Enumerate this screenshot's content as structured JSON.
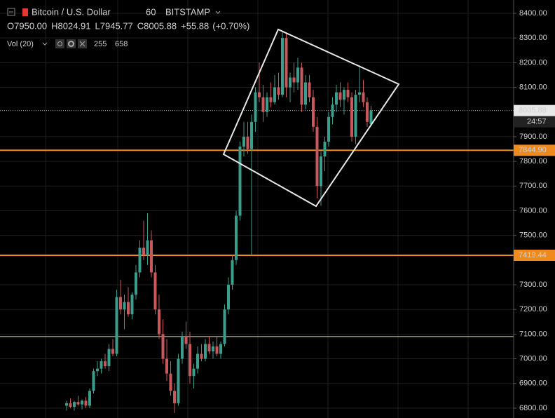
{
  "chart_data": {
    "type": "candlestick",
    "symbol": "Bitcoin / U.S. Dollar",
    "interval": 60,
    "exchange": "BITSTAMP",
    "ohlc": [
      {
        "label": "O",
        "value": "7950.00"
      },
      {
        "label": "H",
        "value": "8024.91"
      },
      {
        "label": "L",
        "value": "7945.77"
      },
      {
        "label": "C",
        "value": "8005.88"
      }
    ],
    "change": "+55.88",
    "change_pct": "(+0.70%)",
    "volume_label": "Vol (20)",
    "volume_values": [
      255,
      658
    ],
    "up_color": "#3a9e8c",
    "down_color": "#c9585c",
    "open": [
      6810,
      6820,
      6805,
      6825,
      6815,
      6830,
      6810,
      6870,
      6950,
      6960,
      6990,
      6970,
      7040,
      7020,
      7250,
      7200,
      7230,
      7180,
      7260,
      7350,
      7450,
      7420,
      7480,
      7350,
      7200,
      7100,
      7000,
      6940,
      6870,
      6820,
      7000,
      7090,
      7060,
      6930,
      6960,
      7020,
      7000,
      7060,
      7030,
      7050,
      7020,
      7060,
      7200,
      7300,
      7400,
      7580,
      7860,
      7900,
      7850,
      7960,
      8080,
      8060,
      8000,
      8060,
      8040,
      8100,
      8070,
      8300,
      8100,
      8140,
      8120,
      8180,
      8030,
      8120,
      8060,
      7940,
      7700,
      7820,
      7880,
      7980,
      8030,
      8080,
      8050,
      8090,
      8060,
      7900,
      8070,
      8080,
      8040,
      7950
    ],
    "high": [
      6830,
      6840,
      6830,
      6850,
      6835,
      6845,
      6880,
      6960,
      6990,
      7000,
      7020,
      7060,
      7080,
      7280,
      7320,
      7260,
      7290,
      7270,
      7380,
      7480,
      7560,
      7590,
      7520,
      7380,
      7260,
      7160,
      7080,
      6990,
      6900,
      7020,
      7110,
      7150,
      7110,
      6980,
      7050,
      7060,
      7080,
      7090,
      7070,
      7090,
      7070,
      7220,
      7330,
      7420,
      7600,
      7880,
      7960,
      7960,
      7990,
      8100,
      8200,
      8110,
      8080,
      8120,
      8150,
      8160,
      8330,
      8320,
      8160,
      8200,
      8220,
      8200,
      8150,
      8150,
      8090,
      7980,
      7840,
      7900,
      8000,
      8060,
      8110,
      8120,
      8100,
      8120,
      8080,
      8090,
      8190,
      8130,
      8060,
      8024.91
    ],
    "low": [
      6790,
      6800,
      6790,
      6810,
      6795,
      6800,
      6800,
      6860,
      6930,
      6940,
      6960,
      6950,
      7010,
      7010,
      7180,
      7120,
      7170,
      7160,
      7240,
      7330,
      7400,
      7380,
      7330,
      7180,
      7080,
      6980,
      6910,
      6850,
      6780,
      6810,
      6980,
      7040,
      6900,
      6880,
      6940,
      6990,
      6990,
      7020,
      7000,
      7010,
      7000,
      7050,
      7180,
      7280,
      7380,
      7560,
      7820,
      7830,
      7420,
      7920,
      8040,
      7960,
      7980,
      8020,
      8030,
      8050,
      8060,
      8060,
      8040,
      8080,
      8090,
      8000,
      8010,
      8040,
      7920,
      7650,
      7620,
      7760,
      7860,
      7950,
      8000,
      8020,
      7990,
      8040,
      7880,
      7870,
      8040,
      8020,
      7940,
      7945.77
    ],
    "close": [
      6820,
      6805,
      6825,
      6815,
      6830,
      6810,
      6870,
      6950,
      6960,
      6990,
      6970,
      7040,
      7020,
      7250,
      7200,
      7230,
      7180,
      7260,
      7350,
      7450,
      7420,
      7480,
      7350,
      7200,
      7100,
      7000,
      6940,
      6870,
      6820,
      7000,
      7090,
      7060,
      6930,
      6960,
      7020,
      7000,
      7060,
      7030,
      7050,
      7020,
      7060,
      7200,
      7300,
      7400,
      7580,
      7860,
      7900,
      7850,
      7960,
      8080,
      8060,
      8000,
      8060,
      8040,
      8100,
      8070,
      8300,
      8100,
      8140,
      8120,
      8180,
      8030,
      8120,
      8060,
      7940,
      7700,
      7820,
      7880,
      7980,
      8030,
      8080,
      8050,
      8090,
      8060,
      7900,
      8070,
      8080,
      8040,
      7960,
      8005.88
    ],
    "ylim": [
      6760,
      8454
    ],
    "yticks": [
      {
        "value": 8400,
        "label": "8400.00"
      },
      {
        "value": 8300,
        "label": "8300.00"
      },
      {
        "value": 8200,
        "label": "8200.00"
      },
      {
        "value": 8100,
        "label": "8100.00"
      },
      {
        "value": 7900,
        "label": "7900.00"
      },
      {
        "value": 7800,
        "label": "7800.00"
      },
      {
        "value": 7700,
        "label": "7700.00"
      },
      {
        "value": 7600,
        "label": "7600.00"
      },
      {
        "value": 7500,
        "label": "7500.00"
      },
      {
        "value": 7300,
        "label": "7300.00"
      },
      {
        "value": 7200,
        "label": "7200.00"
      },
      {
        "value": 7100,
        "label": "7100.00"
      },
      {
        "value": 7000,
        "label": "7000.00"
      },
      {
        "value": 6900,
        "label": "6900.00"
      },
      {
        "value": 6800,
        "label": "6800.00"
      }
    ],
    "grid": true,
    "last_price": {
      "value": 8005.88,
      "label": "8005.88",
      "countdown": "24:57"
    },
    "hlines": [
      {
        "value": 7844.9,
        "label": "7844.90",
        "color": "#f08a1c"
      },
      {
        "value": 7419.44,
        "label": "7419.44",
        "color": "#f08a1c"
      },
      {
        "value": 7090,
        "color": "#e6dfa0"
      }
    ]
  }
}
